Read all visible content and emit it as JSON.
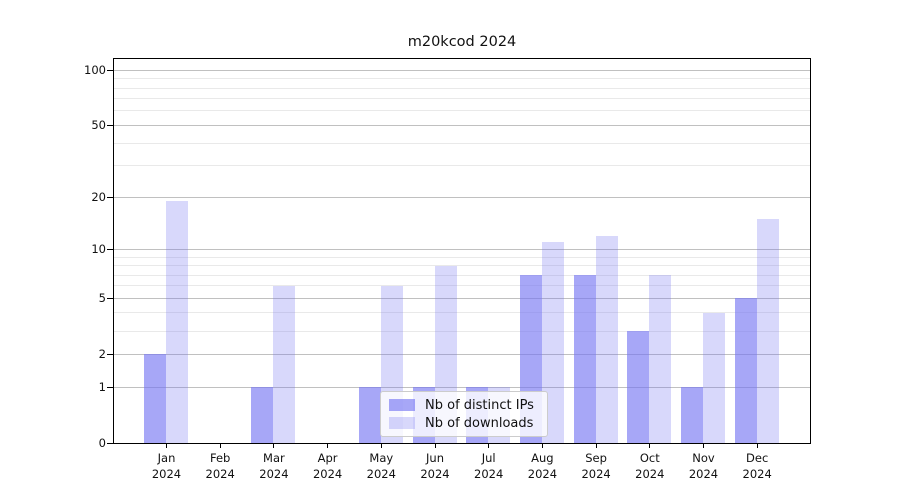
{
  "chart_data": {
    "type": "bar",
    "title": "m20kcod 2024",
    "categories": [
      "Jan",
      "Feb",
      "Mar",
      "Apr",
      "May",
      "Jun",
      "Jul",
      "Aug",
      "Sep",
      "Oct",
      "Nov",
      "Dec"
    ],
    "year_label": "2024",
    "series": [
      {
        "name": "Nb of distinct IPs",
        "values": [
          2,
          0,
          1,
          0,
          1,
          1,
          1,
          7,
          7,
          3,
          1,
          5
        ],
        "color": "rgba(115,115,242,0.63)"
      },
      {
        "name": "Nb of downloads",
        "values": [
          19,
          0,
          6,
          0,
          6,
          8,
          1,
          11,
          12,
          7,
          4,
          15
        ],
        "color": "rgba(115,115,242,0.28)"
      }
    ],
    "yscale": "log(1+y)",
    "ylim": [
      0,
      115
    ],
    "y_major_ticks": [
      0,
      1,
      2,
      5,
      10,
      20,
      50,
      100
    ],
    "y_minor_ticks": [
      3,
      4,
      6,
      7,
      8,
      9,
      30,
      40,
      60,
      70,
      80,
      90
    ],
    "grid": true,
    "legend_position": "lower center"
  },
  "colors": {
    "bar_base": "#7373f2",
    "grid_major": "#c0c0c0",
    "grid_minor": "#e9e9e9",
    "axis": "#000000",
    "background": "#ffffff"
  }
}
